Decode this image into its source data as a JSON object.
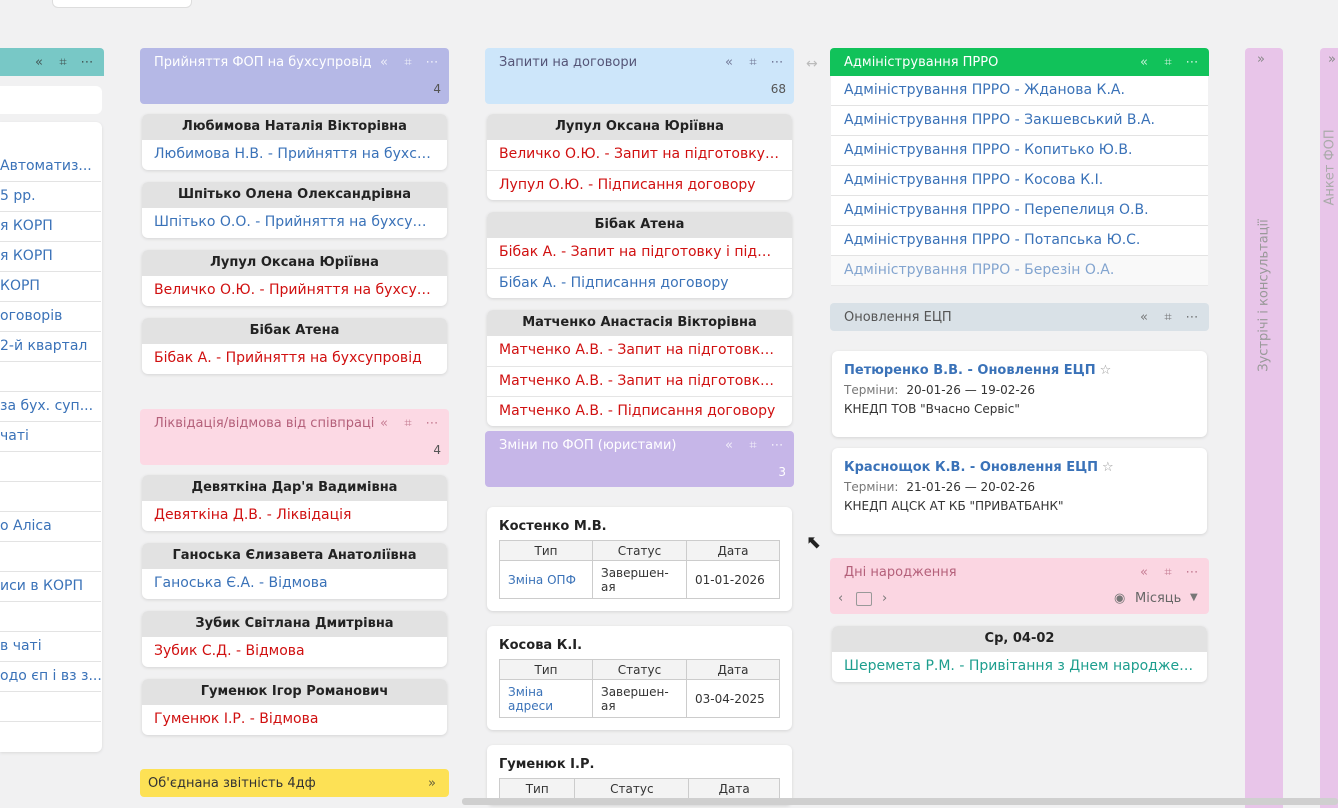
{
  "colors": {
    "teal_header": "#78c8c6",
    "fop_header": "#b5b8e6",
    "zapyty_header": "#cde6fa",
    "prro_header": "#11c25a",
    "likv_header": "#fcd9e4",
    "zminy_header": "#c6b6e8",
    "ecp_header": "#d9e1e7",
    "birthday_header": "#fbd6e2",
    "obyednana_header": "#fde155",
    "meeting_col": "#e8c5e9",
    "red": "#d01010",
    "blue": "#3a72b8"
  },
  "left_col": {
    "items": [
      "Автоматиз...",
      "5 рр.",
      "я КОРП",
      "я КОРП",
      "КОРП",
      "оговорів",
      "2-й квартал",
      "",
      "за бух. суп...",
      "чаті",
      "",
      "",
      "о Аліса",
      "",
      "иси в КОРП",
      "",
      "в чаті",
      "одо єп і вз з...",
      ""
    ]
  },
  "fop": {
    "title": "Прийняття ФОП на бухсупровід",
    "count": "4",
    "cards": [
      {
        "name": "Любимова Наталія Вікторівна",
        "lines": [
          {
            "text": "Любимова Н.В. - Прийняття на бухсупр...",
            "color": "blue"
          }
        ]
      },
      {
        "name": "Шпітько Олена Олександрівна",
        "lines": [
          {
            "text": "Шпітько О.О. - Прийняття на бухсупро...",
            "color": "blue"
          }
        ]
      },
      {
        "name": "Лупул Оксана Юріївна",
        "lines": [
          {
            "text": "Величко О.Ю. - Прийняття на бухсупро...",
            "color": "red"
          }
        ]
      },
      {
        "name": "Бібак Атена",
        "lines": [
          {
            "text": "Бібак А. - Прийняття на бухсупровід",
            "color": "red"
          }
        ]
      }
    ]
  },
  "likv": {
    "title": "Ліквідація/відмова від співпраці",
    "count": "4",
    "cards": [
      {
        "name": "Девяткіна Дар'я Вадимівна",
        "lines": [
          {
            "text": "Девяткіна Д.В. - Ліквідація",
            "color": "red"
          }
        ]
      },
      {
        "name": "Ганоська Єлизавета Анатоліївна",
        "lines": [
          {
            "text": "Ганоська Є.А. - Відмова",
            "color": "blue"
          }
        ]
      },
      {
        "name": "Зубик Світлана Дмитрівна",
        "lines": [
          {
            "text": "Зубик С.Д. - Відмова",
            "color": "red"
          }
        ]
      },
      {
        "name": "Гуменюк Ігор Романович",
        "lines": [
          {
            "text": "Гуменюк І.Р. - Відмова",
            "color": "red"
          }
        ]
      }
    ]
  },
  "obyednana": {
    "title": "Об'єднана звітність 4дф"
  },
  "zapyty": {
    "title": "Запити на договори",
    "count": "68",
    "cards": [
      {
        "name": "Лупул Оксана Юріївна",
        "lines": [
          {
            "text": "Величко О.Ю. - Запит на підготовку і пі...",
            "color": "red"
          },
          {
            "text": "Лупул О.Ю. - Підписання договору",
            "color": "red"
          }
        ]
      },
      {
        "name": "Бібак Атена",
        "lines": [
          {
            "text": "Бібак А. - Запит на підготовку і підписа...",
            "color": "red"
          },
          {
            "text": "Бібак А. - Підписання договору",
            "color": "blue"
          }
        ]
      },
      {
        "name": "Матченко Анастасія Вікторівна",
        "lines": [
          {
            "text": "Матченко А.В. - Запит на підготовку і п...",
            "color": "red"
          },
          {
            "text": "Матченко А.В. - Запит на підготовку і п...",
            "color": "red"
          },
          {
            "text": "Матченко А.В. - Підписання договору",
            "color": "red"
          }
        ]
      }
    ]
  },
  "zminy": {
    "title": "Зміни по ФОП (юристами)",
    "count": "3",
    "table_headers": [
      "Тип",
      "Статус",
      "Дата"
    ],
    "cards": [
      {
        "name": "Костенко М.В.",
        "type": "Зміна ОПФ",
        "status": "Завершен­ая",
        "date": "01-01-2026"
      },
      {
        "name": "Косова К.І.",
        "type": "Зміна адреси",
        "status": "Завершен­ая",
        "date": "03-04-2025"
      },
      {
        "name": "Гуменюк І.Р."
      }
    ]
  },
  "prro": {
    "title": "Адміністрування ПРРО",
    "items": [
      "Адміністрування ПРРО - Жданова К.А.",
      "Адміністрування ПРРО - Закшевський В.А.",
      "Адміністрування ПРРО - Копитько Ю.В.",
      "Адміністрування ПРРО - Косова К.І.",
      "Адміністрування ПРРО - Перепелиця О.В.",
      "Адміністрування ПРРО - Потапська Ю.С.",
      "Адміністрування ПРРО - Березін О.А."
    ]
  },
  "ecp": {
    "title": "Оновлення ЕЦП",
    "terms_label": "Терміни:",
    "cards": [
      {
        "title": "Петюренко В.В. - Оновлення ЕЦП",
        "dates": "20-01-26 — 19-02-26",
        "desc": "КНЕДП ТОВ \"Вчасно Сервіс\""
      },
      {
        "title": "Краснощок К.В. - Оновлення ЕЦП",
        "dates": "21-01-26 — 20-02-26",
        "desc": "КНЕДП АЦСК АТ КБ \"ПРИВАТБАНК\""
      }
    ]
  },
  "birthday": {
    "title": "Дні народження",
    "period": "Місяць",
    "card": {
      "name": "Ср, 04-02",
      "line": "Шеремета Р.М. - Привітання з Днем народження"
    }
  },
  "collapsed": {
    "meetings": "Зустрічі і консультації",
    "next": "Анкет ФОП"
  }
}
